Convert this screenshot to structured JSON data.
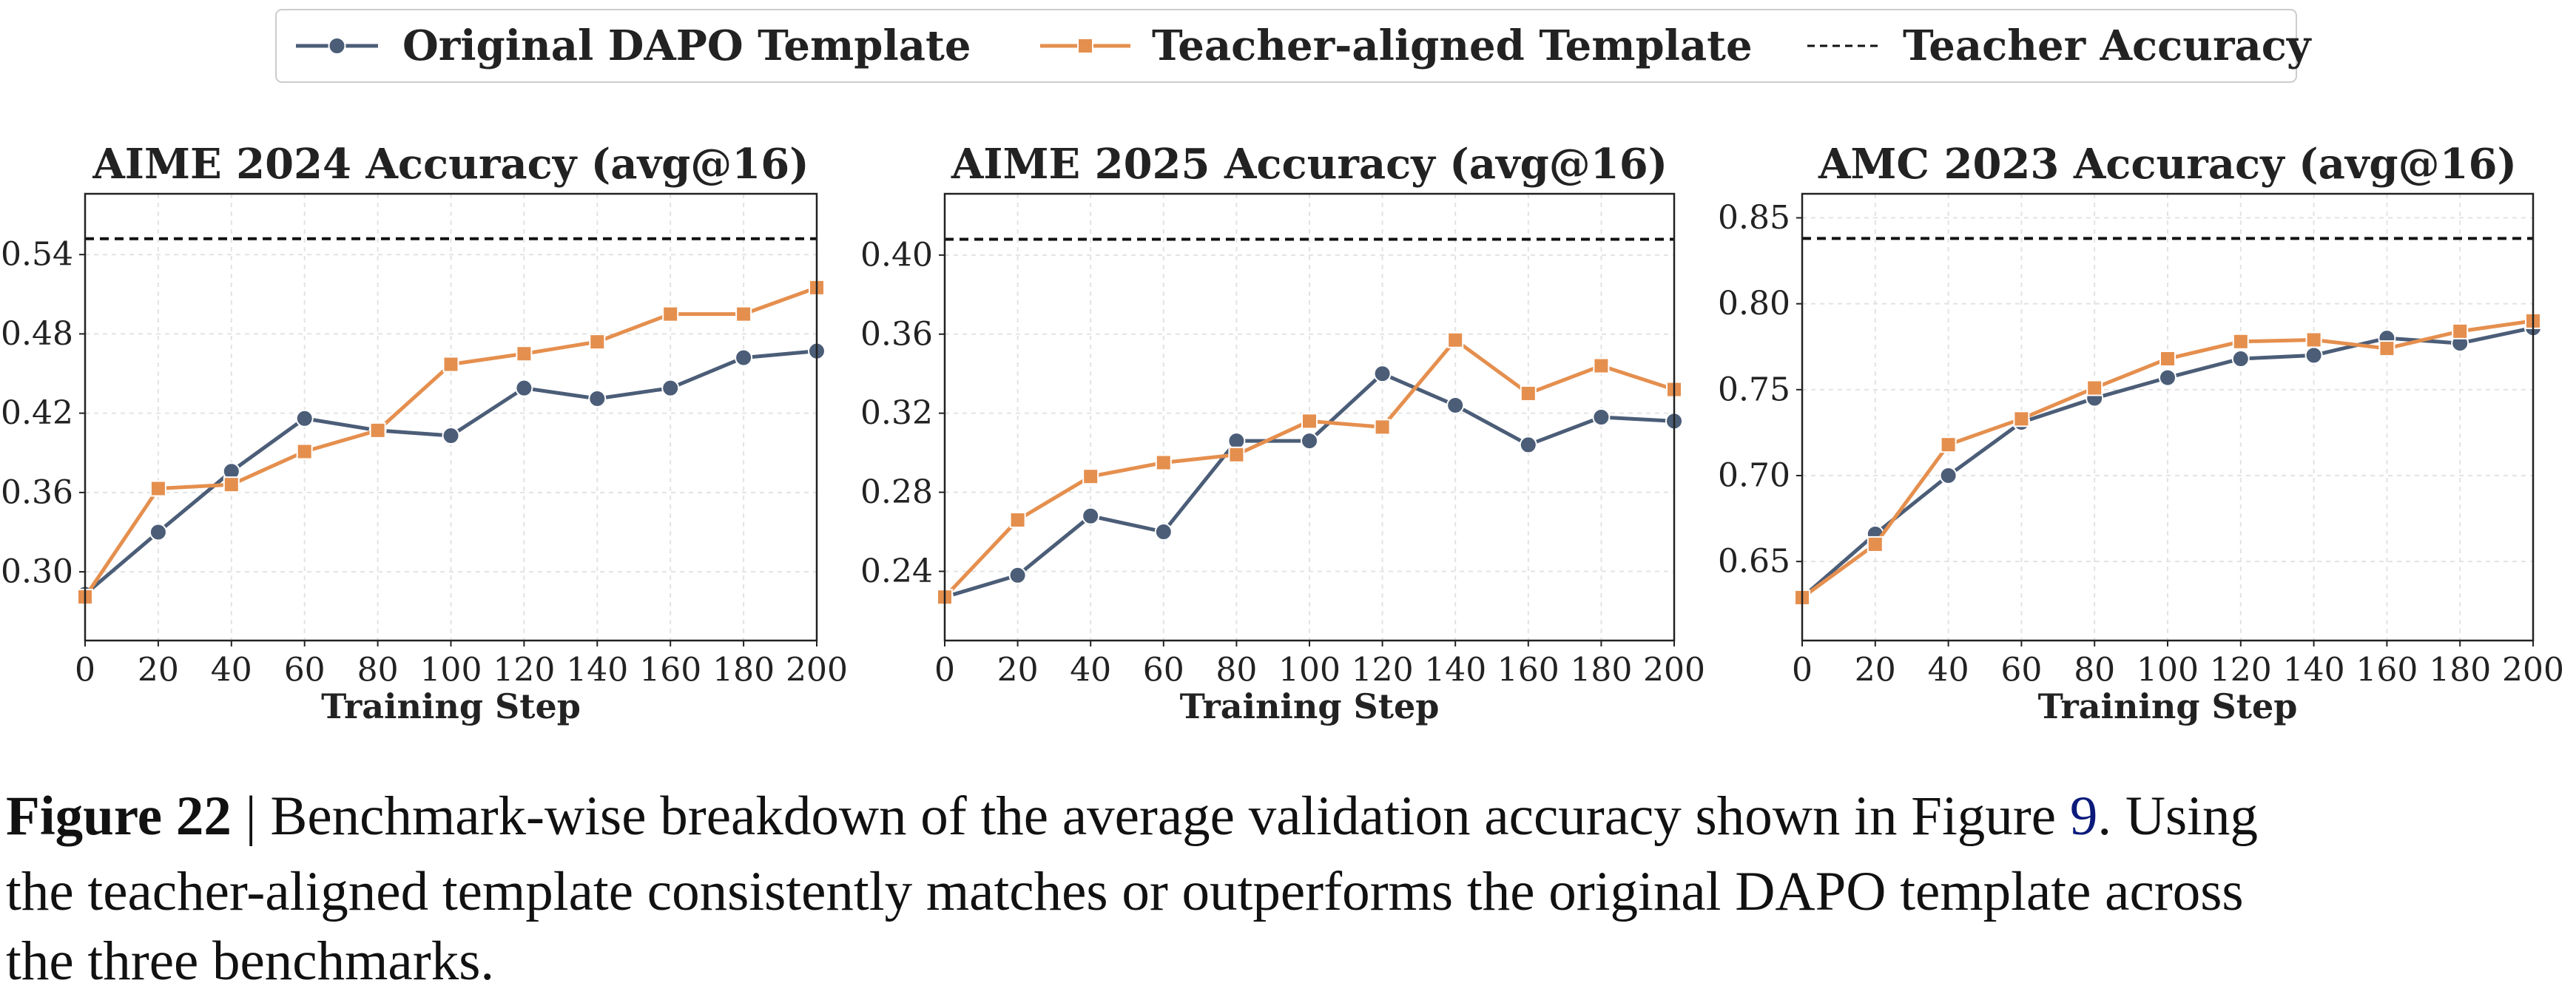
{
  "legend": {
    "entries": [
      {
        "name": "Original DAPO Template",
        "color": "#4b5d77",
        "marker": "circle"
      },
      {
        "name": "Teacher-aligned Template",
        "color": "#e58f4e",
        "marker": "square"
      },
      {
        "name": "Teacher Accuracy",
        "color": "#111111",
        "marker": "dash"
      }
    ]
  },
  "chart_data": [
    {
      "type": "line",
      "title": "AIME 2024 Accuracy (avg@16)",
      "xlabel": "Training Step",
      "grid": true,
      "x": [
        0,
        20,
        40,
        60,
        80,
        100,
        120,
        140,
        160,
        180,
        200
      ],
      "xlim": [
        0,
        200
      ],
      "xticks": [
        0,
        20,
        40,
        60,
        80,
        100,
        120,
        140,
        160,
        180,
        200
      ],
      "ylim": [
        0.248,
        0.586
      ],
      "yticks": [
        {
          "value": 0.3,
          "label": "0.30"
        },
        0.36,
        0.42,
        0.48,
        0.54
      ],
      "teacher_accuracy": 0.552,
      "series": [
        {
          "values": [
            0.283,
            0.33,
            0.376,
            0.416,
            0.407,
            0.403,
            0.439,
            0.431,
            0.439,
            0.462,
            0.467
          ]
        },
        {
          "values": [
            0.281,
            0.363,
            0.366,
            0.391,
            0.407,
            0.457,
            0.465,
            0.474,
            0.495,
            0.495,
            0.515
          ]
        }
      ]
    },
    {
      "type": "line",
      "title": "AIME 2025 Accuracy (avg@16)",
      "xlabel": "Training Step",
      "grid": true,
      "x": [
        0,
        20,
        40,
        60,
        80,
        100,
        120,
        140,
        160,
        180,
        200
      ],
      "xlim": [
        0,
        200
      ],
      "xticks": [
        0,
        20,
        40,
        60,
        80,
        100,
        120,
        140,
        160,
        180,
        200
      ],
      "ylim": [
        0.205,
        0.431
      ],
      "yticks": [
        0.24,
        0.28,
        0.32,
        0.36,
        {
          "value": 0.4,
          "label": "0.40"
        }
      ],
      "teacher_accuracy": 0.408,
      "series": [
        {
          "values": [
            0.227,
            0.238,
            0.268,
            0.26,
            0.306,
            0.306,
            0.34,
            0.324,
            0.304,
            0.318,
            0.316
          ]
        },
        {
          "values": [
            0.227,
            0.266,
            0.288,
            0.295,
            0.299,
            0.316,
            0.313,
            0.357,
            0.33,
            0.344,
            0.332
          ]
        }
      ]
    },
    {
      "type": "line",
      "title": "AMC 2023 Accuracy (avg@16)",
      "xlabel": "Training Step",
      "grid": true,
      "x": [
        0,
        20,
        40,
        60,
        80,
        100,
        120,
        140,
        160,
        180,
        200
      ],
      "xlim": [
        0,
        200
      ],
      "xticks": [
        0,
        20,
        40,
        60,
        80,
        100,
        120,
        140,
        160,
        180,
        200
      ],
      "ylim": [
        0.604,
        0.864
      ],
      "yticks": [
        0.65,
        {
          "value": 0.7,
          "label": "0.70"
        },
        0.75,
        {
          "value": 0.8,
          "label": "0.80"
        },
        0.85
      ],
      "teacher_accuracy": 0.838,
      "series": [
        {
          "values": [
            0.629,
            0.666,
            0.7,
            0.731,
            0.745,
            0.757,
            0.768,
            0.77,
            0.78,
            0.777,
            0.786
          ]
        },
        {
          "values": [
            0.629,
            0.66,
            0.718,
            0.733,
            0.751,
            0.768,
            0.778,
            0.779,
            0.774,
            0.784,
            0.79
          ]
        }
      ]
    }
  ],
  "caption": {
    "label": "Figure 22",
    "line1": " | Benchmark-wise breakdown of the average validation accuracy shown in Figure ",
    "ref": "9",
    "line1_end": ". Using",
    "line2": "the teacher-aligned template consistently matches or outperforms the original DAPO template across",
    "line3": "the three benchmarks."
  }
}
